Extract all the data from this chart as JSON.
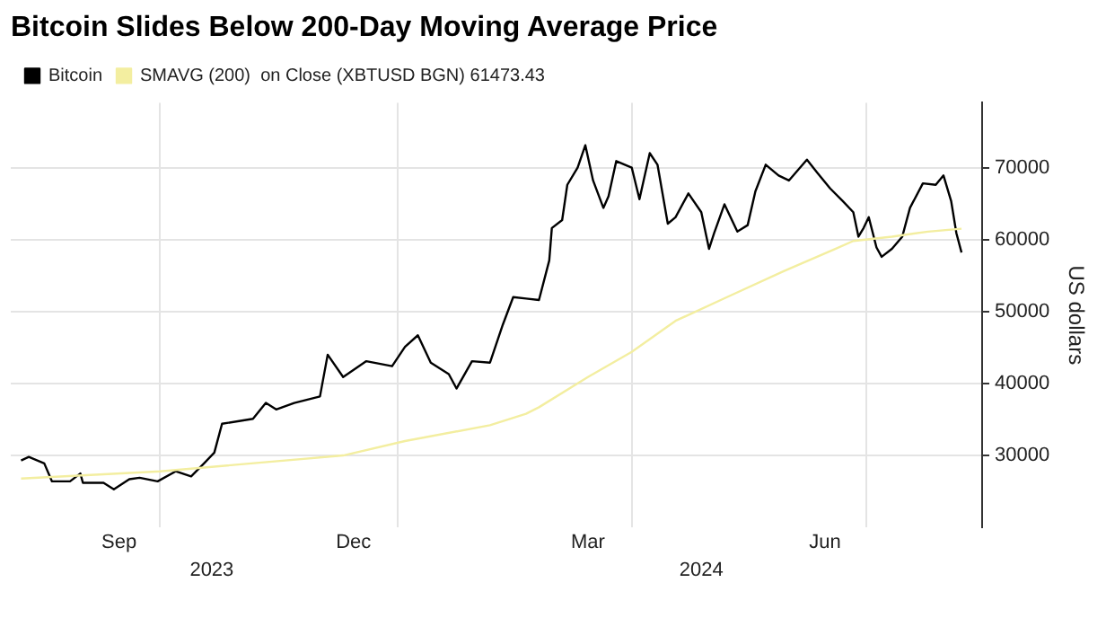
{
  "chart_data": {
    "type": "line",
    "title": "Bitcoin Slides Below 200-Day Moving Average Price",
    "ylabel": "US dollars",
    "ylim": [
      20000,
      79000
    ],
    "yticks": [
      30000,
      40000,
      50000,
      60000,
      70000
    ],
    "xlim": [
      "2023-08-04",
      "2024-08-15"
    ],
    "xticks": [
      {
        "value": "2023-09-15",
        "label": "Sep"
      },
      {
        "value": "2023-10-01",
        "label": null
      },
      {
        "value": "2023-12-15",
        "label": "Dec"
      },
      {
        "value": "2024-01-01",
        "label": null
      },
      {
        "value": "2024-03-15",
        "label": "Mar"
      },
      {
        "value": "2024-04-01",
        "label": null
      },
      {
        "value": "2024-06-15",
        "label": "Jun"
      },
      {
        "value": "2024-07-01",
        "label": null
      }
    ],
    "x2lim": [
      "2023-08-04",
      "2024-08-15"
    ],
    "x2ticks": [
      {
        "value": "2023-10-21",
        "label": "2023"
      },
      {
        "value": "2024-04-28",
        "label": "2024"
      }
    ],
    "grid": true,
    "legend": "top left",
    "series": [
      {
        "name": "Bitcoin",
        "color": "#000000",
        "x": [
          "2023-08-08",
          "2023-08-11",
          "2023-08-17",
          "2023-08-20",
          "2023-08-27",
          "2023-08-31",
          "2023-09-01",
          "2023-09-09",
          "2023-09-13",
          "2023-09-19",
          "2023-09-23",
          "2023-09-30",
          "2023-10-07",
          "2023-10-13",
          "2023-10-18",
          "2023-10-22",
          "2023-10-25",
          "2023-11-06",
          "2023-11-11",
          "2023-11-15",
          "2023-11-22",
          "2023-12-02",
          "2023-12-05",
          "2023-12-11",
          "2023-12-20",
          "2023-12-30",
          "2024-01-04",
          "2024-01-09",
          "2024-01-14",
          "2024-01-21",
          "2024-01-24",
          "2024-01-30",
          "2024-02-06",
          "2024-02-11",
          "2024-02-15",
          "2024-02-20",
          "2024-02-25",
          "2024-02-29",
          "2024-03-01",
          "2024-03-05",
          "2024-03-07",
          "2024-03-11",
          "2024-03-14",
          "2024-03-17",
          "2024-03-21",
          "2024-03-23",
          "2024-03-26",
          "2024-04-01",
          "2024-04-04",
          "2024-04-08",
          "2024-04-11",
          "2024-04-15",
          "2024-04-18",
          "2024-04-23",
          "2024-04-28",
          "2024-05-01",
          "2024-05-03",
          "2024-05-07",
          "2024-05-12",
          "2024-05-16",
          "2024-05-19",
          "2024-05-23",
          "2024-05-28",
          "2024-06-01",
          "2024-06-08",
          "2024-06-12",
          "2024-06-17",
          "2024-06-22",
          "2024-06-26",
          "2024-06-28",
          "2024-06-30",
          "2024-07-02",
          "2024-07-05",
          "2024-07-07",
          "2024-07-11",
          "2024-07-15",
          "2024-07-18",
          "2024-07-23",
          "2024-07-28",
          "2024-07-31",
          "2024-08-03",
          "2024-08-05",
          "2024-08-07"
        ],
        "values": [
          29300,
          29800,
          28900,
          26400,
          26400,
          27500,
          26200,
          26200,
          25300,
          26700,
          26900,
          26400,
          27800,
          27100,
          28900,
          30400,
          34400,
          35100,
          37300,
          36400,
          37300,
          38200,
          44000,
          40900,
          43100,
          42400,
          45100,
          46700,
          42900,
          41300,
          39300,
          43100,
          42900,
          48200,
          52000,
          51800,
          51600,
          57100,
          61600,
          62700,
          67600,
          70000,
          73100,
          68200,
          64400,
          66000,
          70900,
          70000,
          65600,
          72000,
          70400,
          62200,
          63100,
          66400,
          63800,
          58700,
          60900,
          64900,
          61100,
          62000,
          66700,
          70400,
          68900,
          68200,
          71100,
          69300,
          67100,
          65300,
          63800,
          60400,
          61600,
          63100,
          58900,
          57600,
          58700,
          60400,
          64400,
          67800,
          67600,
          68900,
          65300,
          60900,
          58200
        ]
      },
      {
        "name": "SMAVG (200)  on Close (XBTUSD BGN) 61473.43",
        "color": "#f3eea0",
        "x": [
          "2023-08-08",
          "2023-10-01",
          "2023-12-11",
          "2024-01-04",
          "2024-02-06",
          "2024-02-20",
          "2024-02-25",
          "2024-03-15",
          "2024-04-01",
          "2024-04-18",
          "2024-05-08",
          "2024-05-30",
          "2024-06-19",
          "2024-06-26",
          "2024-07-11",
          "2024-07-25",
          "2024-08-07"
        ],
        "values": [
          26800,
          27800,
          30000,
          32000,
          34200,
          35800,
          36700,
          40900,
          44400,
          48700,
          52000,
          55600,
          58700,
          59800,
          60400,
          61100,
          61500
        ]
      }
    ]
  }
}
